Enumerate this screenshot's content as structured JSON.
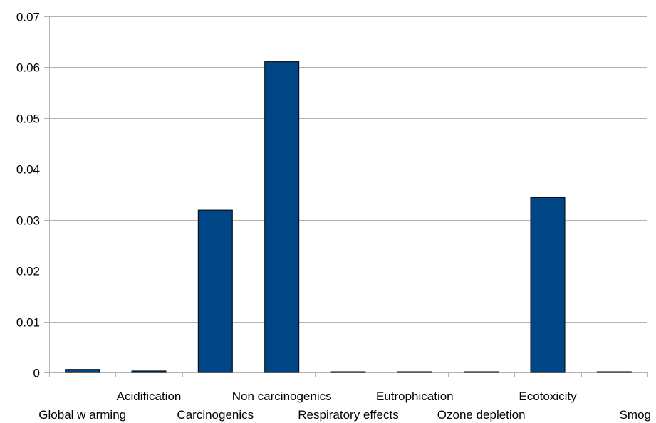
{
  "chart_data": {
    "type": "bar",
    "categories": [
      "Global w arming",
      "Acidification",
      "Carcinogenics",
      "Non carcinogenics",
      "Respiratory effects",
      "Eutrophication",
      "Ozone depletion",
      "Ecotoxicity",
      "Smog"
    ],
    "values": [
      0.0006,
      0.0003,
      0.0319,
      0.0611,
      0.0001,
      0.0001,
      0.0001,
      0.0344,
      0.0001
    ],
    "y_ticks": [
      "0",
      "0.01",
      "0.02",
      "0.03",
      "0.04",
      "0.05",
      "0.06",
      "0.07"
    ],
    "ylim": [
      0,
      0.07
    ],
    "grid": true,
    "legend": "none",
    "bar_color": "#004586",
    "bar_border_color": "#000000",
    "grid_color": "#b3b3b3"
  }
}
